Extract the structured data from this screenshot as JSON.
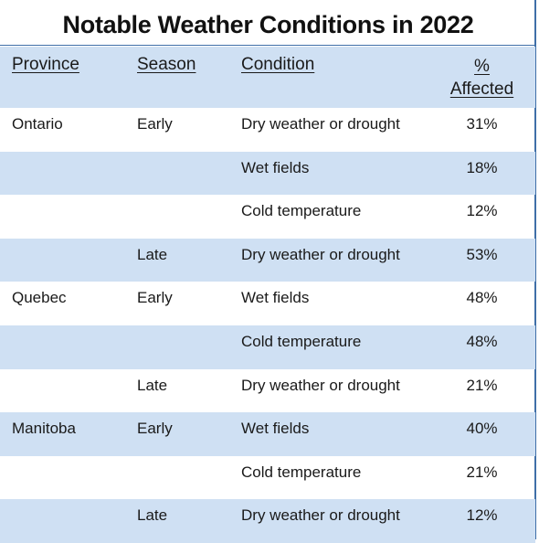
{
  "title": "Notable Weather Conditions in 2022",
  "columns": {
    "province": "Province",
    "season": "Season",
    "condition": "Condition",
    "pct_line1": "%",
    "pct_line2": "Affected"
  },
  "rows": [
    {
      "province": "Ontario",
      "season": "Early",
      "condition": "Dry weather or drought",
      "pct": "31%"
    },
    {
      "province": "",
      "season": "",
      "condition": "Wet fields",
      "pct": "18%"
    },
    {
      "province": "",
      "season": "",
      "condition": "Cold temperature",
      "pct": "12%"
    },
    {
      "province": "",
      "season": "Late",
      "condition": "Dry weather or drought",
      "pct": "53%"
    },
    {
      "province": "Quebec",
      "season": "Early",
      "condition": "Wet fields",
      "pct": "48%"
    },
    {
      "province": "",
      "season": "",
      "condition": "Cold temperature",
      "pct": "48%"
    },
    {
      "province": "",
      "season": "Late",
      "condition": "Dry weather or drought",
      "pct": "21%"
    },
    {
      "province": "Manitoba",
      "season": "Early",
      "condition": "Wet fields",
      "pct": "40%"
    },
    {
      "province": "",
      "season": "",
      "condition": "Cold temperature",
      "pct": "21%"
    },
    {
      "province": "",
      "season": "Late",
      "condition": "Dry weather or drought",
      "pct": "12%"
    }
  ],
  "colors": {
    "band": "#cfe0f3",
    "border": "#3f6fa8"
  }
}
